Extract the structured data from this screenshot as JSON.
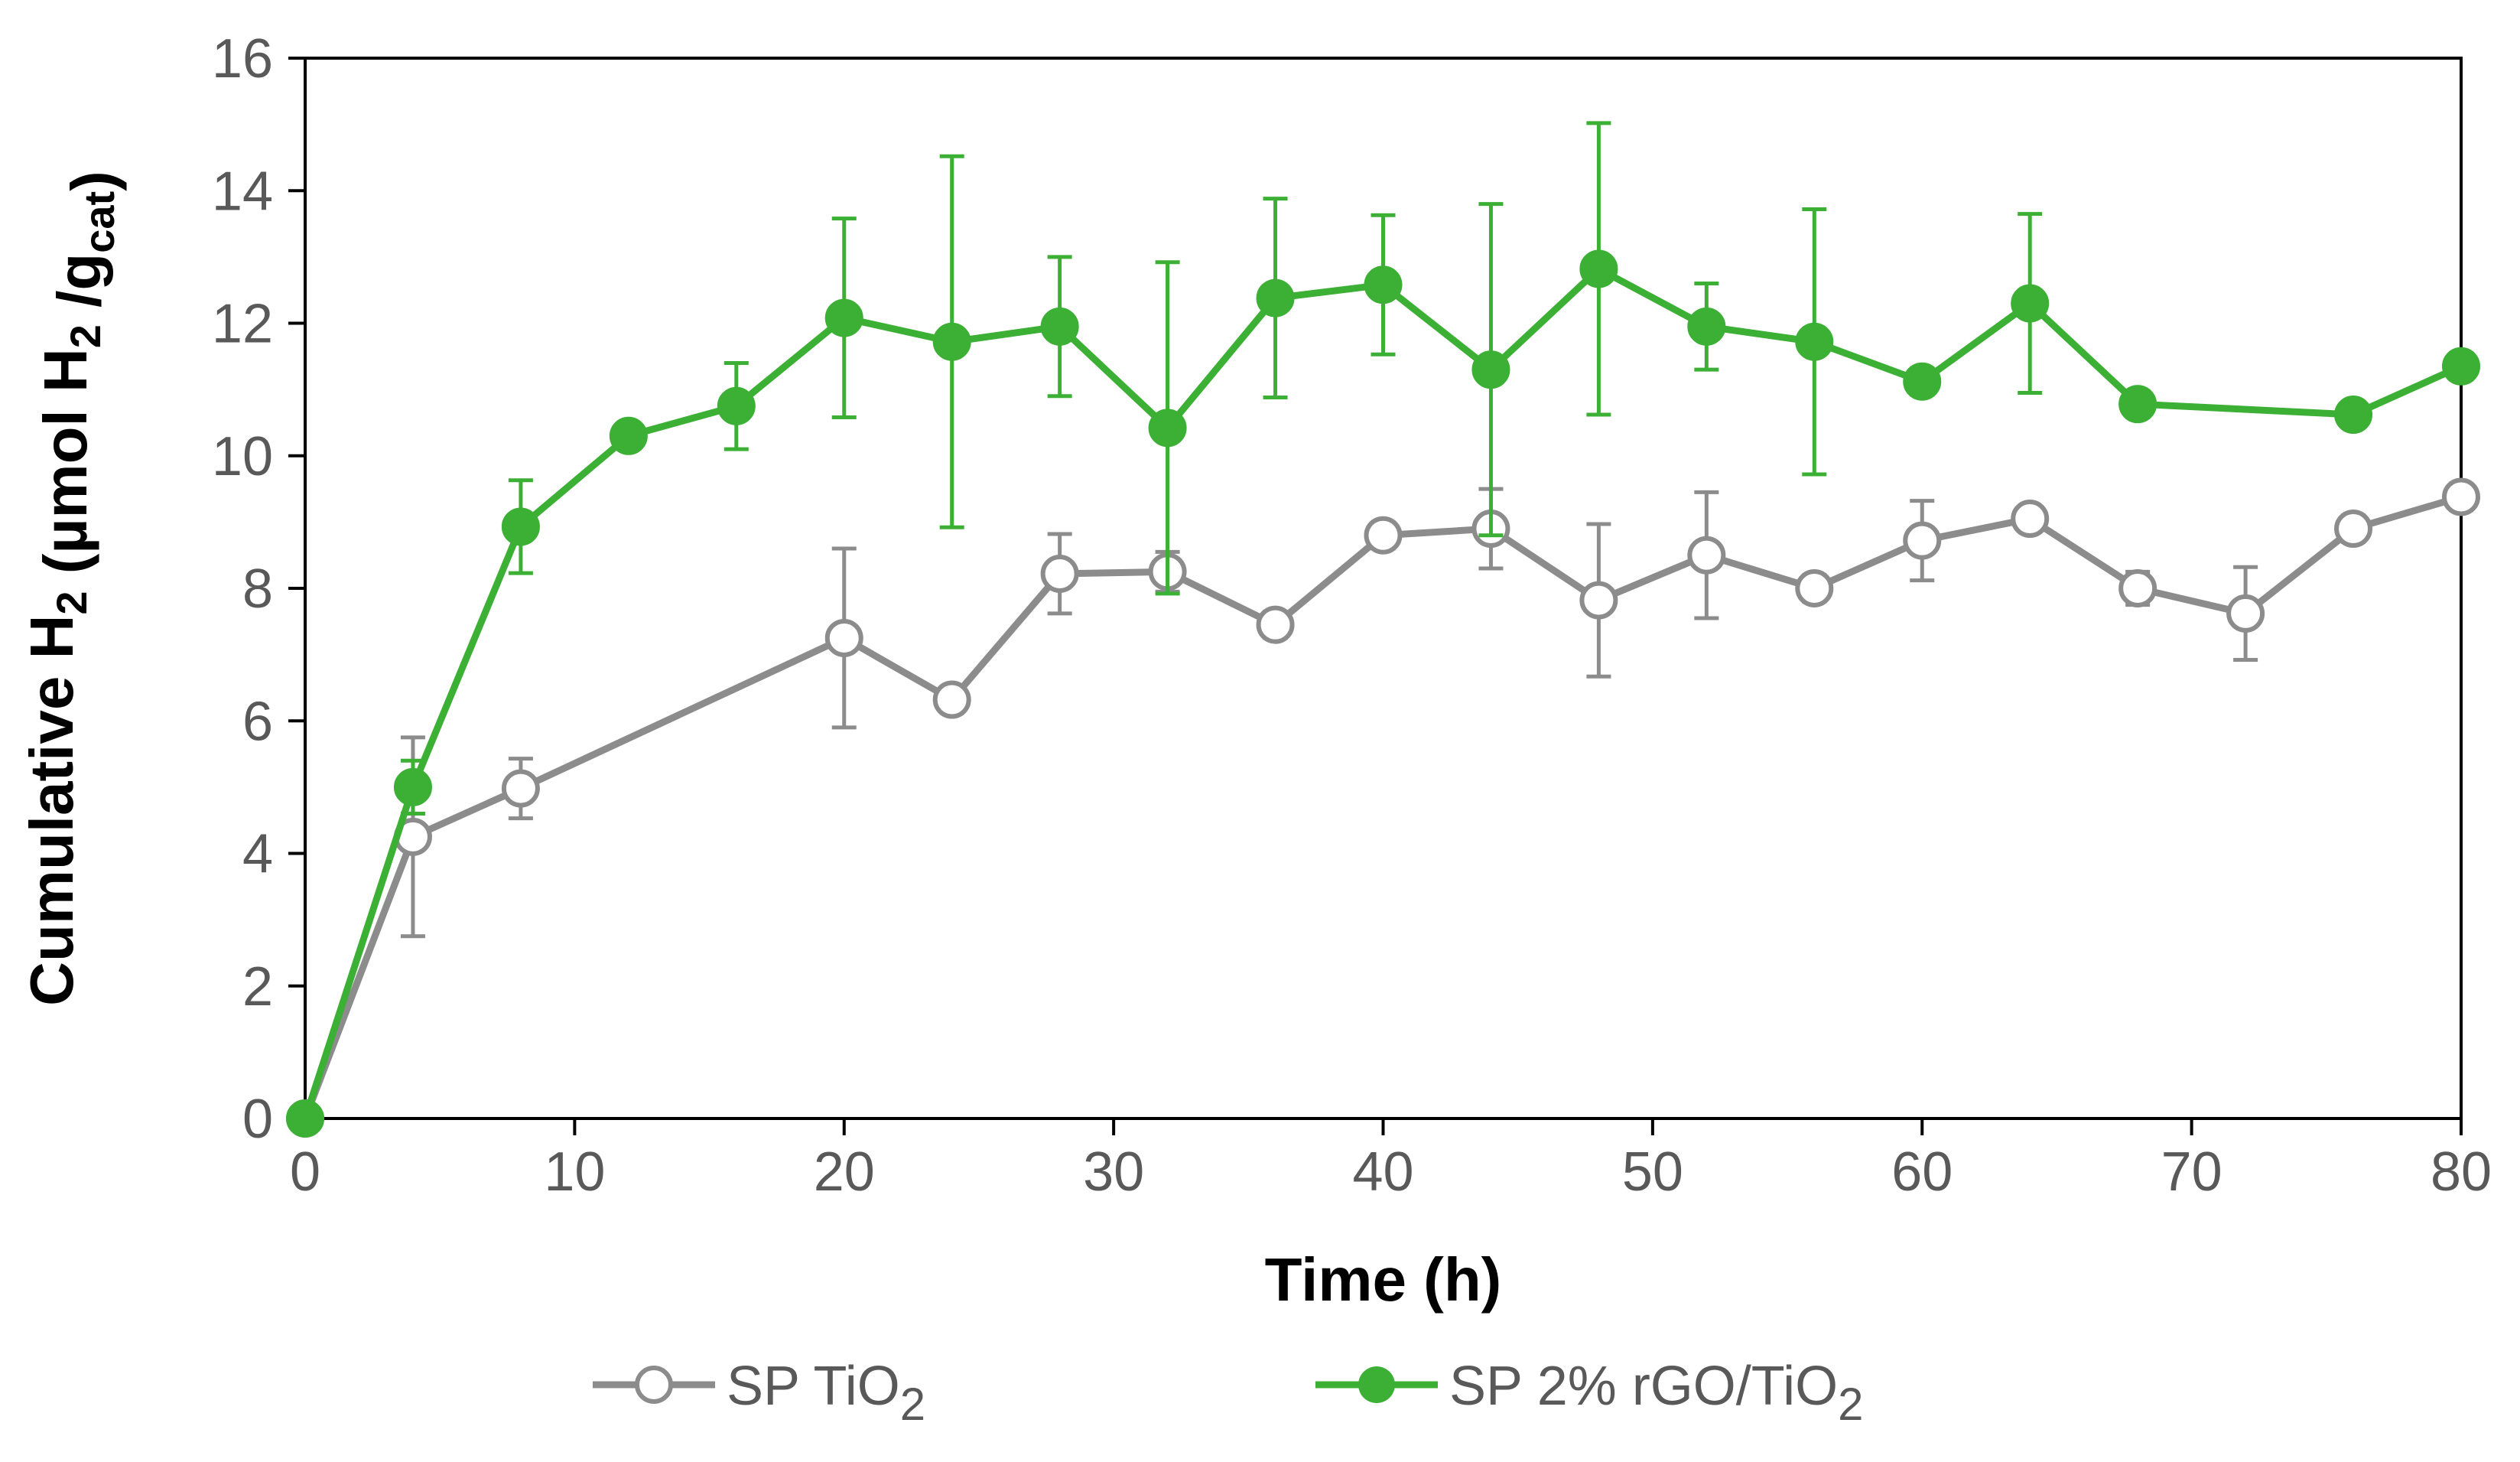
{
  "chart_data": {
    "type": "line",
    "title": "",
    "xlabel": "Time (h)",
    "ylabel": {
      "parts": [
        {
          "t": "Cumulative H"
        },
        {
          "t": "2",
          "sub": true
        },
        {
          "t": " (µmol H"
        },
        {
          "t": "2",
          "sub": true
        },
        {
          "t": " /g"
        },
        {
          "t": "cat",
          "sub": true
        },
        {
          "t": ")"
        }
      ]
    },
    "xlim": [
      0,
      80
    ],
    "ylim": [
      0,
      16
    ],
    "xticks": [
      0,
      10,
      20,
      30,
      40,
      50,
      60,
      70,
      80
    ],
    "yticks": [
      0,
      2,
      4,
      6,
      8,
      10,
      12,
      14,
      16
    ],
    "grid": false,
    "legend_position": "bottom",
    "series": [
      {
        "name": "SP TiO2",
        "label_parts": [
          {
            "t": "SP TiO"
          },
          {
            "t": "2",
            "sub": true
          }
        ],
        "color": "#8c8c8c",
        "marker": "open-circle",
        "x": [
          0,
          4,
          8,
          20,
          24,
          28,
          32,
          36,
          40,
          44,
          48,
          52,
          56,
          60,
          64,
          68,
          72,
          76,
          80
        ],
        "y": [
          0,
          4.25,
          4.98,
          7.25,
          6.32,
          8.22,
          8.25,
          7.45,
          8.8,
          8.9,
          7.82,
          8.5,
          8.0,
          8.72,
          9.05,
          8.0,
          7.62,
          8.9,
          9.38
        ],
        "error": [
          0,
          1.5,
          0.45,
          1.35,
          0.2,
          0.6,
          0.3,
          0.2,
          0.2,
          0.6,
          1.15,
          0.95,
          0.2,
          0.6,
          0.15,
          0.25,
          0.7,
          0.2,
          0.2
        ]
      },
      {
        "name": "SP 2% rGO/TiO2",
        "label_parts": [
          {
            "t": "SP 2% rGO/TiO"
          },
          {
            "t": "2",
            "sub": true
          }
        ],
        "color": "#3cb035",
        "marker": "filled-circle",
        "x": [
          0,
          4,
          8,
          12,
          16,
          20,
          24,
          28,
          32,
          36,
          40,
          44,
          48,
          52,
          56,
          60,
          64,
          68,
          76,
          80
        ],
        "y": [
          0,
          5.0,
          8.93,
          10.3,
          10.75,
          12.08,
          11.72,
          11.95,
          10.42,
          12.38,
          12.58,
          11.3,
          12.82,
          11.95,
          11.72,
          11.12,
          12.3,
          10.78,
          10.62,
          11.35
        ],
        "error": [
          0,
          0.4,
          0.7,
          0.15,
          0.65,
          1.5,
          2.8,
          1.05,
          2.5,
          1.5,
          1.05,
          2.5,
          2.2,
          0.65,
          2.0,
          0.2,
          1.35,
          0.2,
          0.15,
          0.2
        ]
      }
    ]
  }
}
